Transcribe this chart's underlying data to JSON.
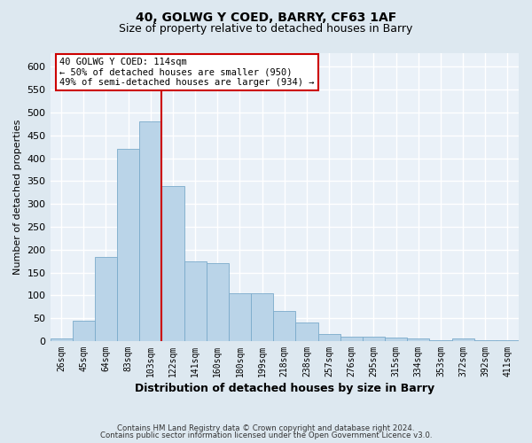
{
  "title": "40, GOLWG Y COED, BARRY, CF63 1AF",
  "subtitle": "Size of property relative to detached houses in Barry",
  "xlabel": "Distribution of detached houses by size in Barry",
  "ylabel": "Number of detached properties",
  "categories": [
    "26sqm",
    "45sqm",
    "64sqm",
    "83sqm",
    "103sqm",
    "122sqm",
    "141sqm",
    "160sqm",
    "180sqm",
    "199sqm",
    "218sqm",
    "238sqm",
    "257sqm",
    "276sqm",
    "295sqm",
    "315sqm",
    "334sqm",
    "353sqm",
    "372sqm",
    "392sqm",
    "411sqm"
  ],
  "values": [
    5,
    45,
    185,
    420,
    480,
    340,
    175,
    170,
    105,
    105,
    65,
    40,
    15,
    10,
    10,
    8,
    5,
    2,
    5,
    2,
    1
  ],
  "bar_color": "#bad4e8",
  "bar_edge_color": "#7aaacb",
  "vline_x_index": 5,
  "vline_color": "#cc0000",
  "ylim": [
    0,
    630
  ],
  "yticks": [
    0,
    50,
    100,
    150,
    200,
    250,
    300,
    350,
    400,
    450,
    500,
    550,
    600
  ],
  "annotation_lines": [
    "40 GOLWG Y COED: 114sqm",
    "← 50% of detached houses are smaller (950)",
    "49% of semi-detached houses are larger (934) →"
  ],
  "footnote1": "Contains HM Land Registry data © Crown copyright and database right 2024.",
  "footnote2": "Contains public sector information licensed under the Open Government Licence v3.0.",
  "bg_color": "#dde8f0",
  "plot_bg_color": "#eaf1f8",
  "grid_color": "#ffffff",
  "xlabel_fontsize": 9,
  "ylabel_fontsize": 8,
  "title_fontsize": 10,
  "subtitle_fontsize": 9
}
